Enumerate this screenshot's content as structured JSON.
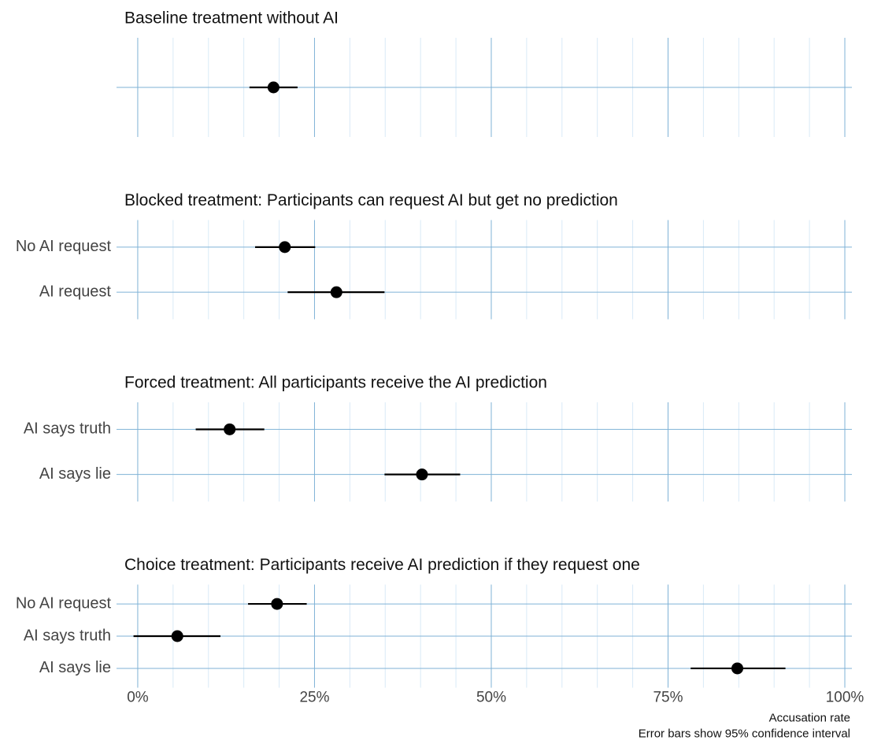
{
  "chart_data": [
    {
      "type": "dot",
      "title": "Baseline treatment without AI",
      "categories": [
        null
      ],
      "values": [
        19.2
      ],
      "ci_low": [
        15.8
      ],
      "ci_high": [
        22.6
      ]
    },
    {
      "type": "dot",
      "title": "Blocked treatment: Participants can request AI but get no prediction",
      "categories": [
        "No AI request",
        "AI request"
      ],
      "values": [
        20.8,
        28.1
      ],
      "ci_low": [
        16.6,
        21.2
      ],
      "ci_high": [
        25.1,
        34.9
      ]
    },
    {
      "type": "dot",
      "title": "Forced treatment: All participants receive the AI prediction",
      "categories": [
        "AI says truth",
        "AI says lie"
      ],
      "values": [
        13.0,
        40.2
      ],
      "ci_low": [
        8.2,
        34.9
      ],
      "ci_high": [
        17.9,
        45.6
      ]
    },
    {
      "type": "dot",
      "title": "Choice treatment: Participants receive AI prediction if they request one",
      "categories": [
        "No AI request",
        "AI says truth",
        "AI says lie"
      ],
      "values": [
        19.7,
        5.6,
        84.8
      ],
      "ci_low": [
        15.6,
        -0.6,
        78.2
      ],
      "ci_high": [
        23.9,
        11.7,
        91.6
      ],
      "xlabel": "Accusation rate",
      "caption": "Error bars show 95% confidence interval",
      "xlim": [
        -3,
        101
      ],
      "xticks": [
        {
          "value": 0,
          "label": "0%"
        },
        {
          "value": 25,
          "label": "25%"
        },
        {
          "value": 50,
          "label": "50%"
        },
        {
          "value": 75,
          "label": "75%"
        },
        {
          "value": 100,
          "label": "100%"
        }
      ],
      "xminor": [
        5,
        10,
        15,
        20,
        30,
        35,
        40,
        45,
        55,
        60,
        65,
        70,
        80,
        85,
        90,
        95
      ],
      "grid": true,
      "color": "#000000"
    }
  ]
}
